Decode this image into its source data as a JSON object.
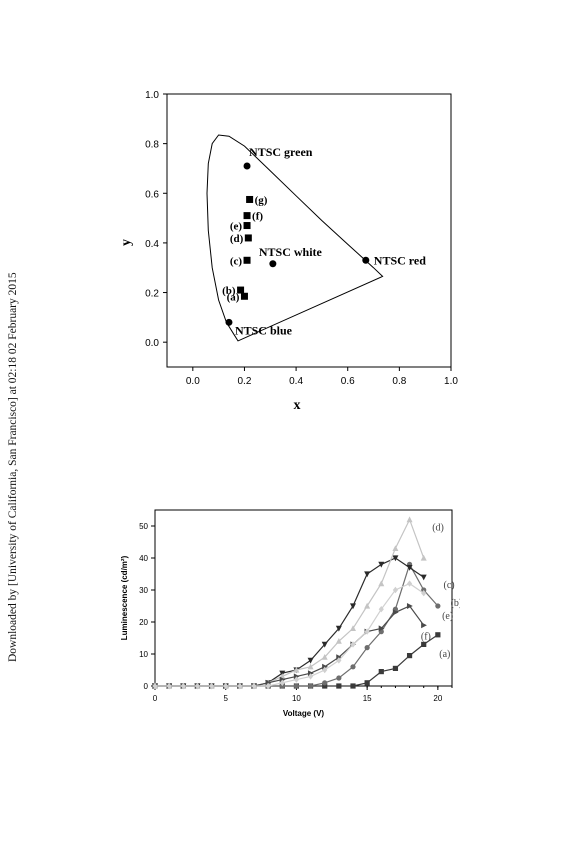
{
  "side_text": "Downloaded by [University of California, San Francisco] at 02:18 02 February 2015",
  "chart_data": [
    {
      "type": "scatter",
      "xlabel": "x",
      "ylabel": "y",
      "xlim": [
        -0.1,
        1.0
      ],
      "ylim": [
        -0.1,
        1.0
      ],
      "xticks": [
        "0.0",
        "0.2",
        "0.4",
        "0.6",
        "0.8",
        "1.0"
      ],
      "yticks": [
        "0.0",
        "0.2",
        "0.4",
        "0.6",
        "0.8",
        "1.0"
      ],
      "locus": [
        [
          0.175,
          0.005
        ],
        [
          0.16,
          0.03
        ],
        [
          0.13,
          0.08
        ],
        [
          0.1,
          0.17
        ],
        [
          0.075,
          0.3
        ],
        [
          0.06,
          0.45
        ],
        [
          0.055,
          0.6
        ],
        [
          0.06,
          0.72
        ],
        [
          0.075,
          0.8
        ],
        [
          0.1,
          0.835
        ],
        [
          0.14,
          0.83
        ],
        [
          0.2,
          0.79
        ],
        [
          0.3,
          0.69
        ],
        [
          0.4,
          0.59
        ],
        [
          0.5,
          0.49
        ],
        [
          0.6,
          0.395
        ],
        [
          0.7,
          0.3
        ],
        [
          0.735,
          0.265
        ],
        [
          0.175,
          0.005
        ]
      ],
      "reference_points": [
        {
          "label": "NTSC green",
          "x": 0.21,
          "y": 0.71
        },
        {
          "label": "NTSC red",
          "x": 0.67,
          "y": 0.33
        },
        {
          "label": "NTSC blue",
          "x": 0.14,
          "y": 0.08
        },
        {
          "label": "NTSC white",
          "x": 0.31,
          "y": 0.316
        }
      ],
      "samples": [
        {
          "label": "(a)",
          "x": 0.2,
          "y": 0.185
        },
        {
          "label": "(b)",
          "x": 0.185,
          "y": 0.21
        },
        {
          "label": "(c)",
          "x": 0.21,
          "y": 0.33
        },
        {
          "label": "(d)",
          "x": 0.215,
          "y": 0.42
        },
        {
          "label": "(e)",
          "x": 0.21,
          "y": 0.47
        },
        {
          "label": "(f)",
          "x": 0.21,
          "y": 0.51
        },
        {
          "label": "(g)",
          "x": 0.22,
          "y": 0.575
        }
      ]
    },
    {
      "type": "line",
      "xlabel": "Voltage (V)",
      "ylabel": "Luminescence (cd/m²)",
      "xlim": [
        0,
        21
      ],
      "ylim": [
        0,
        55
      ],
      "xticks": [
        "0",
        "5",
        "10",
        "15",
        "20"
      ],
      "yticks": [
        "0",
        "10",
        "20",
        "30",
        "40",
        "50"
      ],
      "series": [
        {
          "name": "(a)",
          "color": "#3a3a3a",
          "marker": "square",
          "x": [
            0,
            1,
            2,
            3,
            4,
            5,
            6,
            7,
            8,
            9,
            10,
            11,
            12,
            13,
            14,
            15,
            16,
            17,
            18,
            19,
            20
          ],
          "y": [
            0,
            0,
            0,
            0,
            0,
            0,
            0,
            0,
            0,
            0,
            0,
            0,
            0,
            0,
            0,
            1,
            4.5,
            5.5,
            9.5,
            13,
            16
          ]
        },
        {
          "name": "(b)",
          "color": "#6e6e6e",
          "marker": "circle",
          "x": [
            0,
            1,
            2,
            3,
            4,
            5,
            6,
            7,
            8,
            9,
            10,
            11,
            12,
            13,
            14,
            15,
            16,
            17,
            18,
            19,
            20
          ],
          "y": [
            0,
            0,
            0,
            0,
            0,
            0,
            0,
            0,
            0,
            0,
            0,
            0,
            1,
            2.5,
            6,
            12,
            17,
            24,
            38,
            30,
            25
          ]
        },
        {
          "name": "(c)",
          "color": "#2a2a2a",
          "marker": "triangle-down",
          "x": [
            0,
            1,
            2,
            3,
            4,
            5,
            6,
            7,
            8,
            9,
            10,
            11,
            12,
            13,
            14,
            15,
            16,
            17,
            18,
            19
          ],
          "y": [
            0,
            0,
            0,
            0,
            0,
            0,
            0,
            0,
            1,
            4,
            5,
            8,
            13,
            18,
            25,
            35,
            38,
            40,
            37,
            34
          ]
        },
        {
          "name": "(d)",
          "color": "#c4c4c4",
          "marker": "triangle-up",
          "x": [
            0,
            1,
            2,
            3,
            4,
            5,
            6,
            7,
            8,
            9,
            10,
            11,
            12,
            13,
            14,
            15,
            16,
            17,
            18,
            19
          ],
          "y": [
            0,
            0,
            0,
            0,
            0,
            0,
            0,
            0,
            1,
            3,
            5,
            6,
            9,
            14,
            18,
            25,
            32,
            43,
            52,
            40
          ]
        },
        {
          "name": "(e)",
          "color": "#4a4a4a",
          "marker": "triangle-right",
          "x": [
            0,
            1,
            2,
            3,
            4,
            5,
            6,
            7,
            8,
            9,
            10,
            11,
            12,
            13,
            14,
            15,
            16,
            17,
            18,
            19
          ],
          "y": [
            0,
            0,
            0,
            0,
            0,
            0,
            0,
            0,
            1,
            2,
            3,
            4,
            6,
            9,
            13,
            17,
            18,
            23,
            25,
            19
          ]
        },
        {
          "name": "(f)",
          "color": "#d0d0d0",
          "marker": "diamond",
          "x": [
            0,
            1,
            2,
            3,
            4,
            5,
            6,
            7,
            8,
            9,
            10,
            11,
            12,
            13,
            14,
            15,
            16,
            17,
            18,
            19
          ],
          "y": [
            0,
            0,
            0,
            0,
            0,
            0,
            0,
            0,
            0,
            1,
            2,
            3,
            5,
            8,
            13,
            17,
            24,
            30,
            32,
            29
          ]
        }
      ]
    }
  ]
}
